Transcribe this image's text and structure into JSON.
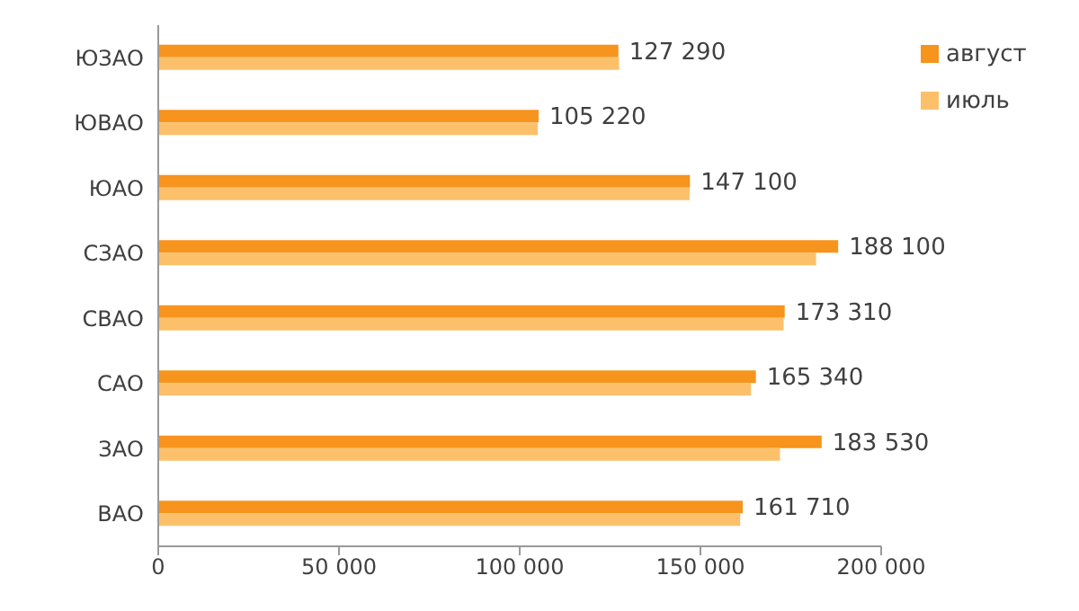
{
  "chart_data": {
    "type": "bar",
    "orientation": "horizontal",
    "categories": [
      "ЮЗАО",
      "ЮВАО",
      "ЮАО",
      "СЗАО",
      "СВАО",
      "САО",
      "ЗАО",
      "ВАО"
    ],
    "series": [
      {
        "name": "август",
        "color": "#f7941d",
        "values": [
          127290,
          105220,
          147100,
          188100,
          173310,
          165340,
          183530,
          161710
        ],
        "value_labels": [
          "127 290",
          "105 220",
          "147 100",
          "188 100",
          "173 310",
          "165 340",
          "183 530",
          "161 710"
        ]
      },
      {
        "name": "июль",
        "color": "#fcc06b",
        "values": [
          127500,
          105000,
          147000,
          182000,
          173000,
          164000,
          172000,
          161000
        ]
      }
    ],
    "xlim": [
      0,
      200000
    ],
    "xticks": [
      0,
      {
        "value": 50000,
        "label": "50 000"
      },
      {
        "value": 100000,
        "label": "100 000"
      },
      {
        "value": 150000,
        "label": "150 000"
      },
      {
        "value": 200000,
        "label": "200 000"
      }
    ],
    "grid": false,
    "legend": "top right"
  }
}
